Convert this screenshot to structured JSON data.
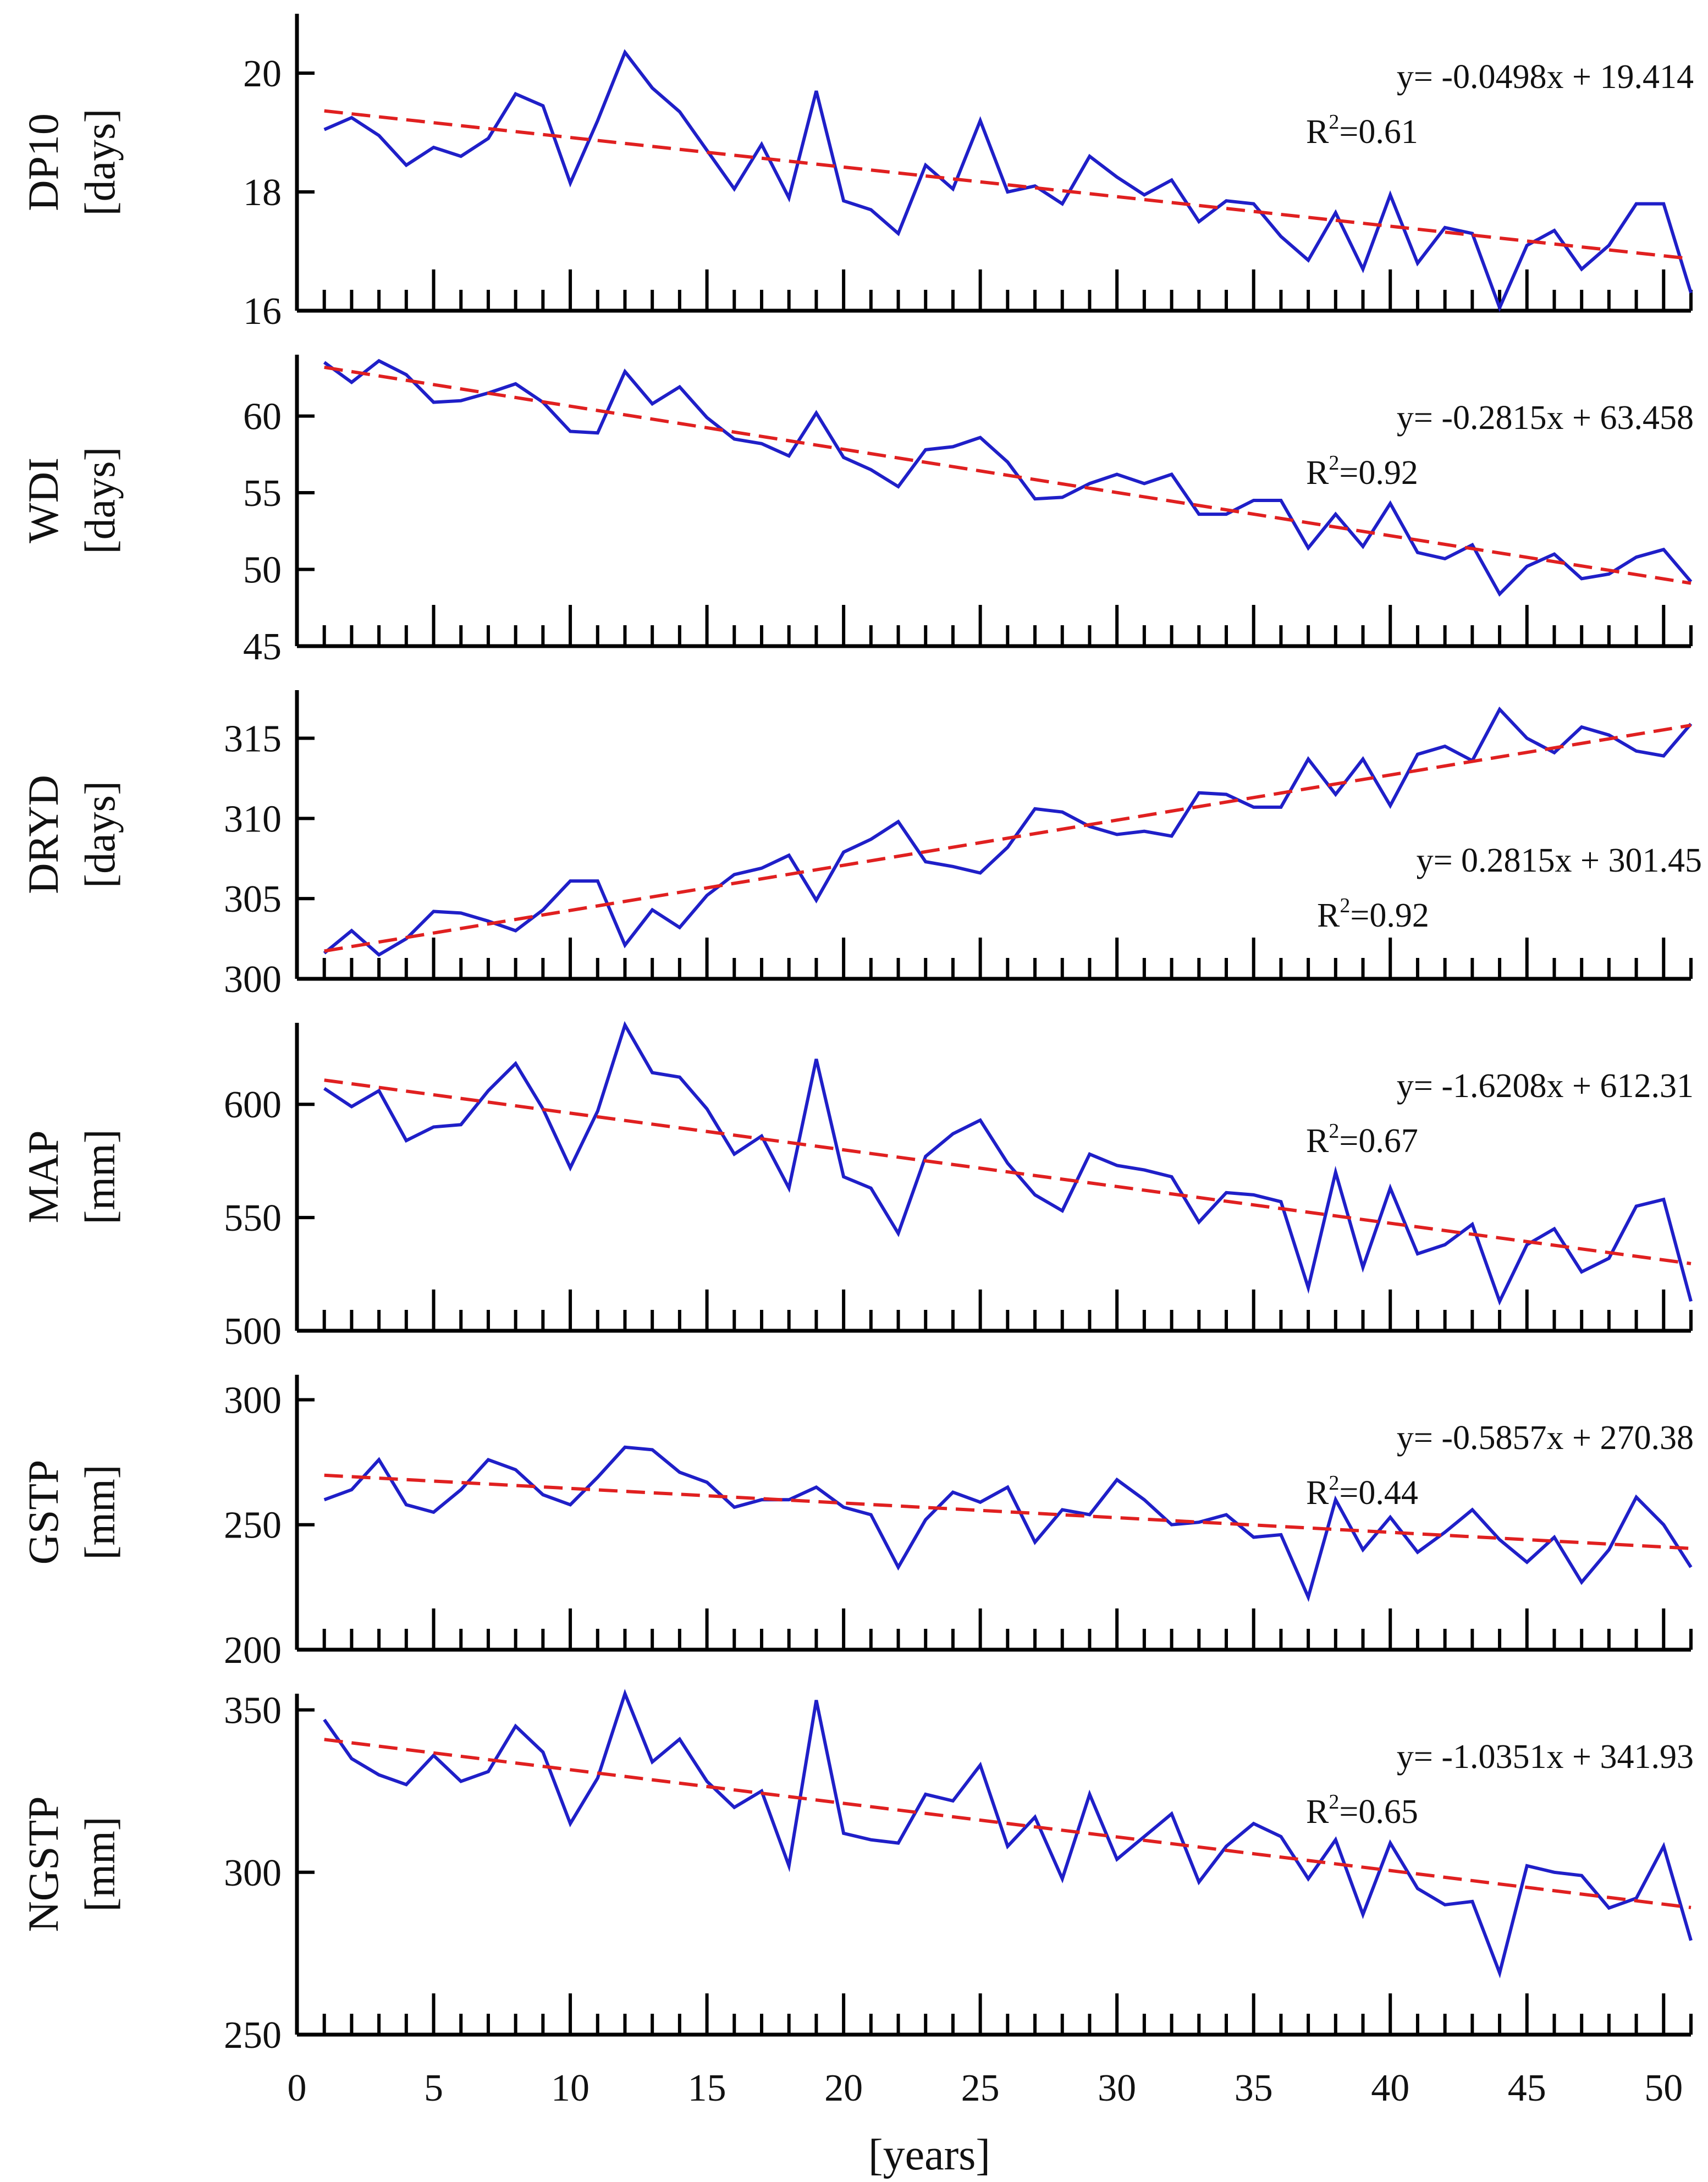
{
  "chart_data": {
    "type": "line",
    "x": [
      1,
      2,
      3,
      4,
      5,
      6,
      7,
      8,
      9,
      10,
      11,
      12,
      13,
      14,
      15,
      16,
      17,
      18,
      19,
      20,
      21,
      22,
      23,
      24,
      25,
      26,
      27,
      28,
      29,
      30,
      31,
      32,
      33,
      34,
      35,
      36,
      37,
      38,
      39,
      40,
      41,
      42,
      43,
      44,
      45,
      46,
      47,
      48,
      49,
      50,
      51
    ],
    "xlabel": "[years]",
    "xlim": [
      0,
      51
    ],
    "xticks": [
      0,
      5,
      10,
      15,
      20,
      25,
      30,
      35,
      40,
      45,
      50
    ],
    "colors": {
      "series": "#1f1fc8",
      "trend": "#e02020"
    },
    "panels": [
      {
        "name": "DP10",
        "unit": "[days]",
        "ylim": [
          16,
          21
        ],
        "yticks": [
          16,
          18,
          20
        ],
        "equation": "y= -0.0498x + 19.414",
        "r2_label": "R",
        "r2_sup": "2",
        "r2_value": "=0.61",
        "trend": {
          "slope": -0.0498,
          "intercept": 19.414
        },
        "values": [
          19.05,
          19.25,
          18.95,
          18.45,
          18.75,
          18.6,
          18.9,
          19.65,
          19.45,
          18.15,
          19.2,
          20.35,
          19.75,
          19.35,
          18.7,
          18.05,
          18.8,
          17.9,
          19.7,
          17.85,
          17.7,
          17.3,
          18.45,
          18.05,
          19.2,
          18.0,
          18.1,
          17.8,
          18.6,
          18.25,
          17.95,
          18.2,
          17.5,
          17.85,
          17.8,
          17.25,
          16.85,
          17.65,
          16.7,
          17.95,
          16.8,
          17.4,
          17.3,
          16.05,
          17.1,
          17.35,
          16.7,
          17.1,
          17.8,
          17.8,
          16.3
        ]
      },
      {
        "name": "WDI",
        "unit": "[days]",
        "ylim": [
          45,
          64
        ],
        "yticks": [
          45,
          50,
          55,
          60
        ],
        "equation": "y= -0.2815x + 63.458",
        "r2_label": "R",
        "r2_sup": "2",
        "r2_value": "=0.92",
        "trend": {
          "slope": -0.2815,
          "intercept": 63.458
        },
        "values": [
          63.5,
          62.2,
          63.6,
          62.7,
          60.9,
          61.0,
          61.5,
          62.1,
          60.9,
          59.0,
          58.9,
          62.9,
          60.8,
          61.9,
          59.9,
          58.5,
          58.2,
          57.4,
          60.2,
          57.3,
          56.5,
          55.4,
          57.8,
          58.0,
          58.6,
          57.0,
          54.6,
          54.7,
          55.6,
          56.2,
          55.6,
          56.2,
          53.6,
          53.6,
          54.5,
          54.5,
          51.4,
          53.6,
          51.5,
          54.3,
          51.1,
          50.7,
          51.6,
          48.4,
          50.2,
          51.0,
          49.4,
          49.7,
          50.8,
          51.3,
          49.2
        ]
      },
      {
        "name": "DRYD",
        "unit": "[days]",
        "ylim": [
          300,
          318
        ],
        "yticks": [
          300,
          305,
          310,
          315
        ],
        "equation": "y= 0.2815x + 301.45",
        "r2_label": "R",
        "r2_sup": "2",
        "r2_value": "=0.92",
        "trend": {
          "slope": 0.2815,
          "intercept": 301.45
        },
        "values": [
          301.6,
          303.0,
          301.5,
          302.5,
          304.2,
          304.1,
          303.6,
          303.0,
          304.3,
          306.1,
          306.1,
          302.1,
          304.3,
          303.2,
          305.2,
          306.5,
          306.9,
          307.7,
          304.9,
          307.9,
          308.7,
          309.8,
          307.3,
          307.0,
          306.6,
          308.2,
          310.6,
          310.4,
          309.5,
          309.0,
          309.2,
          308.9,
          311.6,
          311.5,
          310.7,
          310.7,
          313.7,
          311.5,
          313.7,
          310.8,
          314.0,
          314.5,
          313.6,
          316.8,
          315.0,
          314.1,
          315.7,
          315.2,
          314.2,
          313.9,
          315.9
        ]
      },
      {
        "name": "MAP",
        "unit": "[mm]",
        "ylim": [
          500,
          636
        ],
        "yticks": [
          500,
          550,
          600
        ],
        "equation": "y= -1.6208x + 612.31",
        "r2_label": "R",
        "r2_sup": "2",
        "r2_value": "=0.67",
        "trend": {
          "slope": -1.6208,
          "intercept": 612.31
        },
        "values": [
          607,
          599,
          606,
          584,
          590,
          591,
          606,
          618,
          598,
          572,
          597,
          635,
          614,
          612,
          598,
          578,
          586,
          563,
          620,
          568,
          563,
          543,
          577,
          587,
          593,
          574,
          560,
          553,
          578,
          573,
          571,
          568,
          548,
          561,
          560,
          557,
          519,
          570,
          528,
          563,
          534,
          538,
          547,
          513,
          538,
          545,
          526,
          532,
          555,
          558,
          513
        ]
      },
      {
        "name": "GSTP",
        "unit": "[mm]",
        "ylim": [
          200,
          310
        ],
        "yticks": [
          200,
          250,
          300
        ],
        "equation": "y= -0.5857x + 270.38",
        "r2_label": "R",
        "r2_sup": "2",
        "r2_value": "=0.44",
        "trend": {
          "slope": -0.5857,
          "intercept": 270.38
        },
        "values": [
          260,
          264,
          276,
          258,
          255,
          264,
          276,
          272,
          262,
          258,
          269,
          281,
          280,
          271,
          267,
          257,
          260,
          260,
          265,
          257,
          254,
          233,
          252,
          263,
          259,
          265,
          243,
          256,
          254,
          268,
          260,
          250,
          251,
          254,
          245,
          246,
          221,
          260,
          240,
          253,
          239,
          247,
          256,
          244,
          235,
          245,
          227,
          240,
          261,
          250,
          233
        ]
      },
      {
        "name": "NGSTP",
        "unit": "[mm]",
        "ylim": [
          250,
          355
        ],
        "yticks": [
          250,
          300,
          350
        ],
        "equation": "y= -1.0351x + 341.93",
        "r2_label": "R",
        "r2_sup": "2",
        "r2_value": "=0.65",
        "trend": {
          "slope": -1.0351,
          "intercept": 341.93
        },
        "values": [
          347,
          335,
          330,
          327,
          336,
          328,
          331,
          345,
          337,
          315,
          329,
          355,
          334,
          341,
          328,
          320,
          325,
          302,
          353,
          312,
          310,
          309,
          324,
          322,
          333,
          308,
          317,
          298,
          324,
          304,
          311,
          318,
          297,
          308,
          315,
          311,
          298,
          310,
          287,
          309,
          295,
          290,
          291,
          269,
          302,
          300,
          299,
          289,
          292,
          308,
          279
        ]
      }
    ]
  }
}
